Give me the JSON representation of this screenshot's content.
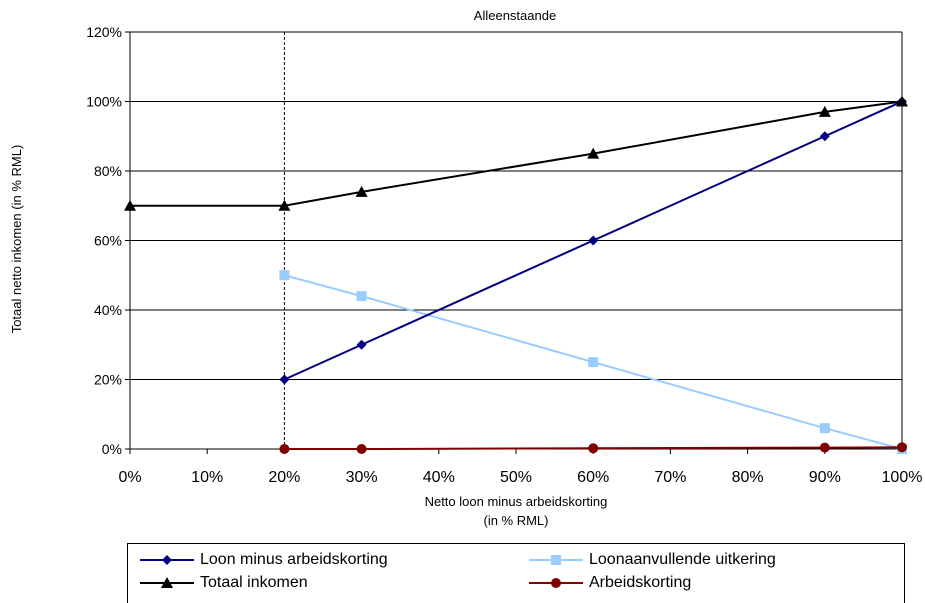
{
  "chart_data": {
    "type": "line",
    "title": "Alleenstaande",
    "xlabel": [
      "Netto loon minus arbeidskorting",
      "(in % RML)"
    ],
    "ylabel": "Totaal netto inkomen (in % RML)",
    "xlim": [
      0,
      1
    ],
    "ylim": [
      0,
      1.2
    ],
    "x_ticks": [
      "0%",
      "10%",
      "20%",
      "30%",
      "40%",
      "50%",
      "60%",
      "70%",
      "80%",
      "90%",
      "100%"
    ],
    "y_ticks": [
      "0%",
      "20%",
      "40%",
      "60%",
      "80%",
      "100%",
      "120%"
    ],
    "grid": "horizontal",
    "reference_line_x": 0.2,
    "legend_position": "bottom",
    "series": [
      {
        "name": "Loon minus arbeidskorting",
        "color": "#000080",
        "marker": "diamond",
        "x": [
          0.2,
          0.3,
          0.6,
          0.9,
          1.0
        ],
        "values": [
          0.2,
          0.3,
          0.6,
          0.9,
          1.0
        ]
      },
      {
        "name": "Loonaanvullende uitkering",
        "color": "#99ccff",
        "marker": "square",
        "x": [
          0.2,
          0.3,
          0.6,
          0.9,
          1.0
        ],
        "values": [
          0.5,
          0.44,
          0.25,
          0.06,
          0.0
        ]
      },
      {
        "name": "Totaal inkomen",
        "color": "#000000",
        "marker": "triangle",
        "x": [
          0.0,
          0.2,
          0.3,
          0.6,
          0.9,
          1.0
        ],
        "values": [
          0.7,
          0.7,
          0.74,
          0.85,
          0.97,
          1.0
        ]
      },
      {
        "name": "Arbeidskorting",
        "color": "#800000",
        "marker": "circle",
        "x": [
          0.2,
          0.3,
          0.6,
          0.9,
          1.0
        ],
        "values": [
          0.0,
          0.0,
          0.002,
          0.004,
          0.005
        ]
      }
    ]
  }
}
